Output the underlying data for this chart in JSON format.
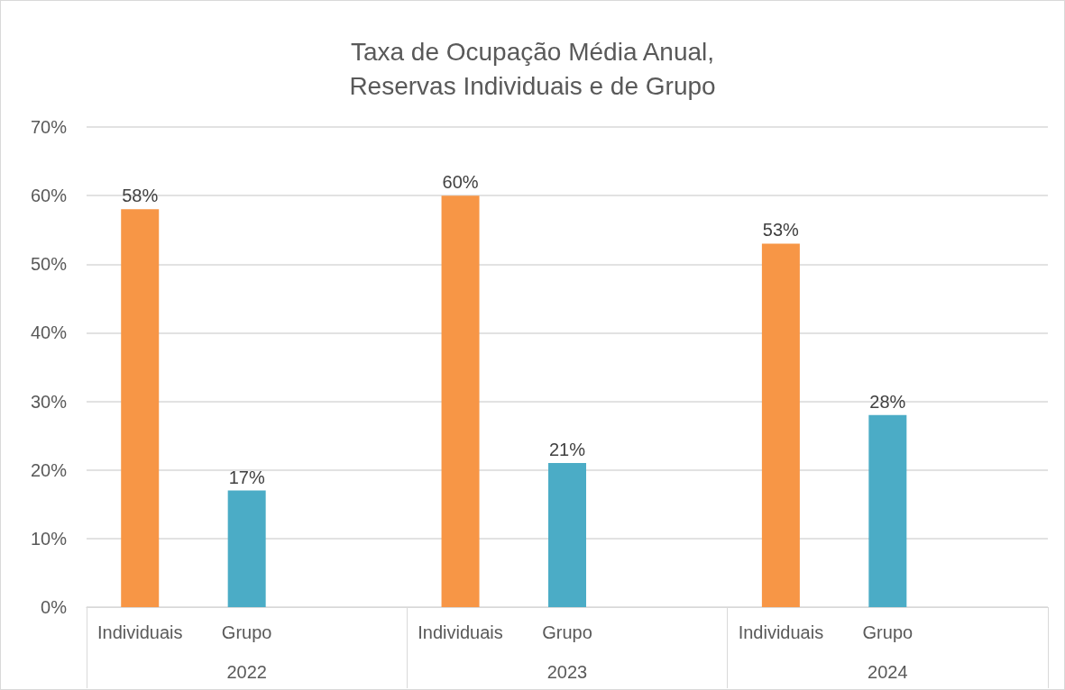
{
  "chart_data": {
    "type": "bar",
    "title": "Taxa de Ocupação Média Anual,\nReservas Individuais e de Grupo",
    "categories": [
      "2022",
      "2023",
      "2024"
    ],
    "series": [
      {
        "name": "Individuais",
        "color": "#f79646",
        "values": [
          58,
          60,
          53
        ],
        "value_labels": [
          "58%",
          "60%",
          "53%"
        ]
      },
      {
        "name": "Grupo",
        "color": "#4bacc6",
        "values": [
          17,
          21,
          28
        ],
        "value_labels": [
          "17%",
          "21%",
          "28%"
        ]
      }
    ],
    "ylim": [
      0,
      70
    ],
    "yticks": [
      {
        "value": 0,
        "label": "0%"
      },
      {
        "value": 10,
        "label": "10%"
      },
      {
        "value": 20,
        "label": "20%"
      },
      {
        "value": 30,
        "label": "30%"
      },
      {
        "value": 40,
        "label": "40%"
      },
      {
        "value": 50,
        "label": "50%"
      },
      {
        "value": 60,
        "label": "60%"
      },
      {
        "value": 70,
        "label": "70%"
      }
    ],
    "grid": "y"
  }
}
